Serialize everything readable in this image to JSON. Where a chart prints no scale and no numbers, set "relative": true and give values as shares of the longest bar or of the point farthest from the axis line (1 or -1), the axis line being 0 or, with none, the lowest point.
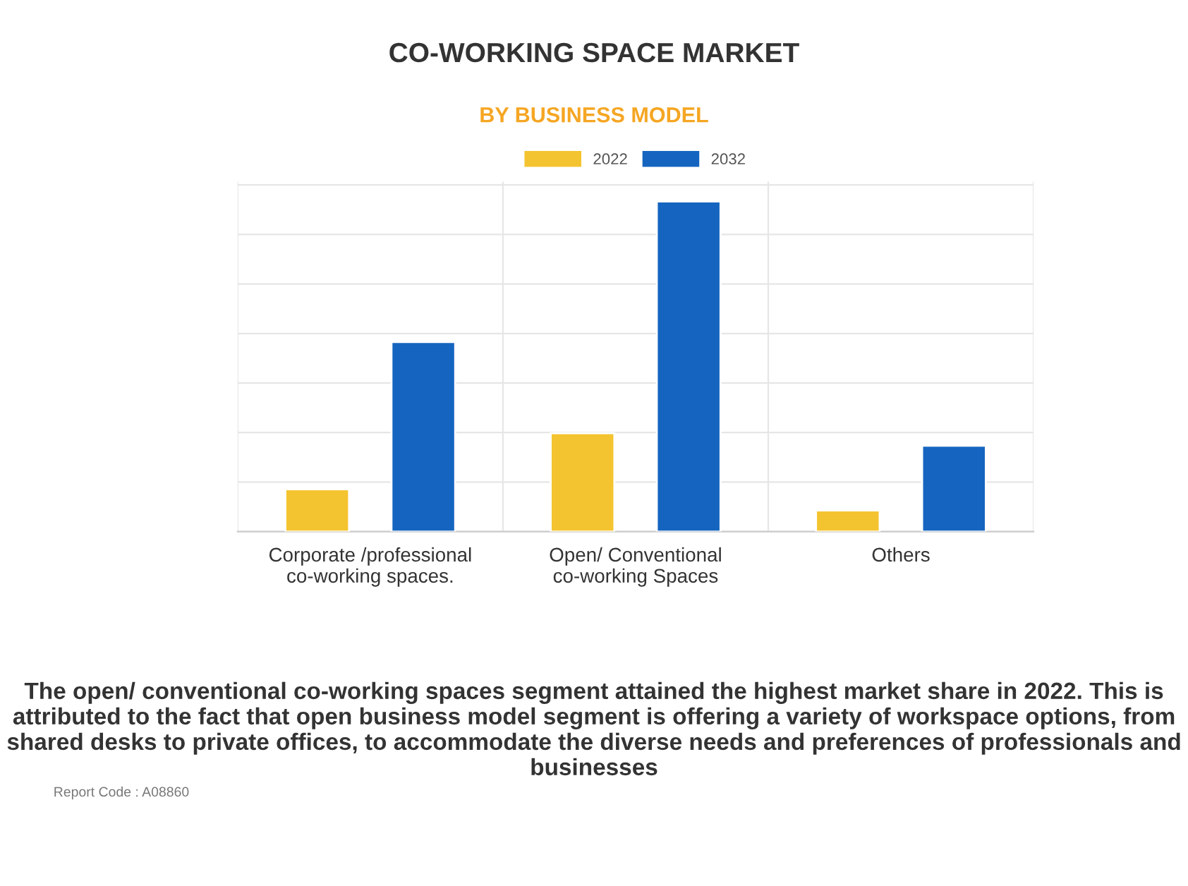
{
  "chart_data": {
    "type": "bar",
    "title": "CO-WORKING SPACE MARKET",
    "subtitle": "BY BUSINESS MODEL",
    "categories": [
      "Corporate /professional\nco-working spaces.",
      "Open/ Conventional\nco-working Spaces",
      "Others"
    ],
    "series": [
      {
        "name": "2022",
        "color": "#f4c430",
        "values": [
          0.128,
          0.298,
          0.064
        ]
      },
      {
        "name": "2032",
        "color": "#1565c0",
        "values": [
          0.574,
          1,
          0.26
        ]
      }
    ],
    "relative": true,
    "grid": true,
    "legend": "top",
    "annotations": [
      "The open/ conventional co-working spaces segment attained the highest market share in 2022. This is attributed to the fact that open business model segment is offering a variety of workspace options, from shared desks to private offices, to accommodate the diverse needs and preferences of professionals and businesses",
      "Report Code : A08860"
    ]
  }
}
